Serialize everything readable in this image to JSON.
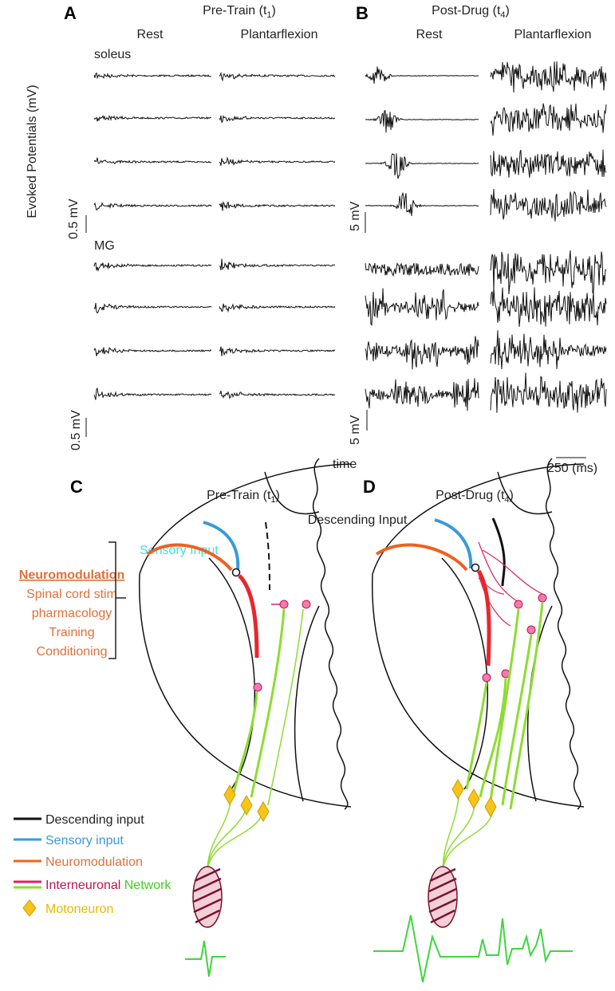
{
  "panel_a": {
    "letter": "A",
    "title": [
      "Pre-Train (t",
      "1",
      ")"
    ],
    "columns": [
      "Rest",
      "Plantarflexion"
    ],
    "muscles": [
      "soleus",
      "MG"
    ],
    "y_label": "Evoked Potentials (mV)",
    "scale_labels": [
      "0.5 mV",
      "0.5 mV"
    ]
  },
  "panel_b": {
    "letter": "B",
    "title": [
      "Post-Drug (t",
      "4",
      ")"
    ],
    "columns": [
      "Rest",
      "Plantarflexion"
    ],
    "scale_labels": [
      "5 mV",
      "5 mV"
    ],
    "x_label": "time",
    "time_scale": "250 (ms)"
  },
  "panel_c": {
    "letter": "C",
    "title": [
      "Pre-Train (t",
      "1",
      ")"
    ],
    "descending": "Descending Input",
    "sensory": "Sensory Input",
    "neuromodulation": {
      "heading": "Neuromodulation",
      "items": [
        "Spinal cord stim",
        "pharmacology",
        "Training",
        "Conditioning"
      ]
    }
  },
  "panel_d": {
    "letter": "D",
    "title": [
      "Post-Drug (t",
      "4",
      ")"
    ]
  },
  "legend": {
    "descending": "Descending input",
    "sensory": "Sensory input",
    "neuromodulation": "Neuromodulation",
    "interneuronal": "Interneuronal",
    "network": "Network",
    "motoneuron": "Motoneuron"
  }
}
